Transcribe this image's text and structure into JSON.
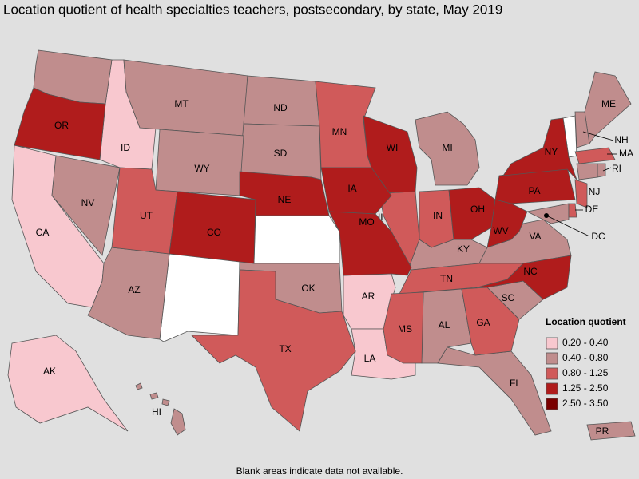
{
  "title": "Location quotient of health specialties teachers, postsecondary, by state, May 2019",
  "note": "Blank areas indicate data not available.",
  "legend": {
    "title": "Location quotient",
    "items": [
      {
        "label": "0.20 - 0.40",
        "color": "#f8c8cf",
        "states": [
          "ID",
          "CA",
          "AR",
          "LA",
          "AK"
        ]
      },
      {
        "label": "0.40 - 0.80",
        "color": "#c08d8d",
        "states": [
          "WA",
          "MT",
          "ND",
          "SD",
          "WY",
          "NV",
          "AZ",
          "OK",
          "MI",
          "KY",
          "VA",
          "AL",
          "SC",
          "FL",
          "ME",
          "NH",
          "RI",
          "HI",
          "PR",
          "DC"
        ]
      },
      {
        "label": "0.80 - 1.25",
        "color": "#d05a5a",
        "states": [
          "MN",
          "UT",
          "TX",
          "IL",
          "IN",
          "TN",
          "MS",
          "GA",
          "MA",
          "NJ",
          "DE"
        ]
      },
      {
        "label": "1.25 - 2.50",
        "color": "#b01c1c",
        "states": [
          "OR",
          "WI",
          "IA",
          "NE",
          "CO",
          "MO",
          "OH",
          "WV",
          "PA",
          "NY",
          "NC"
        ]
      },
      {
        "label": "2.50 - 3.50",
        "color": "#7a0000"
      }
    ]
  }
}
